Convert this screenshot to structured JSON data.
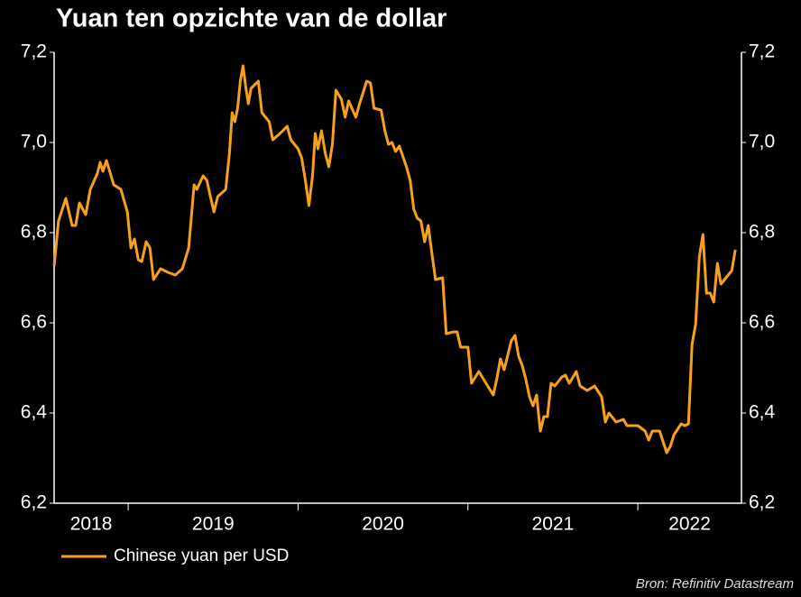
{
  "chart_data": {
    "type": "line",
    "title": "Yuan ten opzichte van de dollar",
    "source": "Bron: Refinitiv Datastream",
    "xlim": [
      2018.564,
      2022.61
    ],
    "xticks": [
      2019,
      2020,
      2021,
      2022
    ],
    "xlabels": [
      2018,
      2019,
      2020,
      2021,
      2022
    ],
    "ylim": [
      6.2,
      7.2
    ],
    "yticks": [
      {
        "value": 6.2,
        "label": "6,2"
      },
      {
        "value": 6.4,
        "label": "6,4"
      },
      {
        "value": 6.6,
        "label": "6,6"
      },
      {
        "value": 6.8,
        "label": "6,8"
      },
      {
        "value": 7.0,
        "label": "7,0"
      },
      {
        "value": 7.2,
        "label": "7,2"
      }
    ],
    "y2lim": [
      6.2,
      7.2
    ],
    "y2ticks": [
      {
        "value": 6.2,
        "label": "6,2"
      },
      {
        "value": 6.4,
        "label": "6,4"
      },
      {
        "value": 6.6,
        "label": "6,6"
      },
      {
        "value": 6.8,
        "label": "6,8"
      },
      {
        "value": 7.0,
        "label": "7,0"
      },
      {
        "value": 7.2,
        "label": "7,2"
      }
    ],
    "legend": "bottom-left",
    "x": [
      2018.564,
      2018.59,
      2018.633,
      2018.67,
      2018.691,
      2018.713,
      2018.75,
      2018.777,
      2018.819,
      2018.835,
      2018.851,
      2018.872,
      2018.915,
      2018.957,
      2018.995,
      2019.016,
      2019.037,
      2019.059,
      2019.08,
      2019.106,
      2019.128,
      2019.149,
      2019.191,
      2019.234,
      2019.277,
      2019.319,
      2019.356,
      2019.372,
      2019.388,
      2019.404,
      2019.441,
      2019.463,
      2019.484,
      2019.505,
      2019.527,
      2019.574,
      2019.596,
      2019.612,
      2019.628,
      2019.644,
      2019.66,
      2019.676,
      2019.691,
      2019.707,
      2019.723,
      2019.766,
      2019.787,
      2019.83,
      2019.851,
      2019.894,
      2019.936,
      2019.957,
      2020.0,
      2020.021,
      2020.043,
      2020.064,
      2020.085,
      2020.101,
      2020.117,
      2020.138,
      2020.16,
      2020.181,
      2020.202,
      2020.223,
      2020.255,
      2020.277,
      2020.298,
      2020.34,
      2020.362,
      2020.404,
      2020.426,
      2020.447,
      2020.489,
      2020.511,
      2020.532,
      2020.553,
      2020.574,
      2020.596,
      2020.638,
      2020.66,
      2020.681,
      2020.702,
      2020.723,
      2020.745,
      2020.766,
      2020.787,
      2020.809,
      2020.851,
      2020.872,
      2020.915,
      2020.936,
      2020.957,
      2021.0,
      2021.021,
      2021.064,
      2021.106,
      2021.149,
      2021.17,
      2021.191,
      2021.213,
      2021.255,
      2021.277,
      2021.298,
      2021.319,
      2021.34,
      2021.362,
      2021.383,
      2021.404,
      2021.426,
      2021.447,
      2021.468,
      2021.489,
      2021.511,
      2021.553,
      2021.574,
      2021.596,
      2021.638,
      2021.66,
      2021.702,
      2021.745,
      2021.787,
      2021.809,
      2021.83,
      2021.872,
      2021.915,
      2021.936,
      2022.0,
      2022.043,
      2022.064,
      2022.085,
      2022.128,
      2022.149,
      2022.17,
      2022.191,
      2022.213,
      2022.255,
      2022.277,
      2022.298,
      2022.319,
      2022.34,
      2022.362,
      2022.383,
      2022.404,
      2022.426,
      2022.447,
      2022.468,
      2022.489,
      2022.532,
      2022.553,
      2022.574
    ],
    "series": [
      {
        "name": "Chinese yuan per USD",
        "color": "#f7a11a",
        "values": [
          6.726,
          6.826,
          6.876,
          6.816,
          6.816,
          6.866,
          6.84,
          6.896,
          6.932,
          6.956,
          6.936,
          6.96,
          6.906,
          6.896,
          6.846,
          6.766,
          6.786,
          6.74,
          6.736,
          6.78,
          6.766,
          6.696,
          6.72,
          6.712,
          6.706,
          6.72,
          6.766,
          6.836,
          6.906,
          6.896,
          6.926,
          6.916,
          6.88,
          6.846,
          6.88,
          6.896,
          6.976,
          7.066,
          7.046,
          7.076,
          7.136,
          7.17,
          7.126,
          7.086,
          7.12,
          7.136,
          7.066,
          7.046,
          7.006,
          7.02,
          7.036,
          7.006,
          6.986,
          6.966,
          6.916,
          6.86,
          6.926,
          7.02,
          6.986,
          7.026,
          6.976,
          6.946,
          6.996,
          7.116,
          7.096,
          7.056,
          7.092,
          7.056,
          7.086,
          7.136,
          7.132,
          7.076,
          7.072,
          7.026,
          6.996,
          7.0,
          6.98,
          6.992,
          6.946,
          6.916,
          6.852,
          6.832,
          6.826,
          6.78,
          6.816,
          6.756,
          6.696,
          6.7,
          6.576,
          6.58,
          6.58,
          6.546,
          6.546,
          6.466,
          6.492,
          6.466,
          6.44,
          6.476,
          6.52,
          6.496,
          6.56,
          6.572,
          6.526,
          6.506,
          6.476,
          6.436,
          6.416,
          6.44,
          6.36,
          6.392,
          6.392,
          6.466,
          6.46,
          6.48,
          6.484,
          6.466,
          6.492,
          6.46,
          6.45,
          6.46,
          6.436,
          6.38,
          6.4,
          6.38,
          6.386,
          6.372,
          6.372,
          6.36,
          6.34,
          6.36,
          6.36,
          6.336,
          6.312,
          6.326,
          6.352,
          6.376,
          6.372,
          6.376,
          6.552,
          6.596,
          6.746,
          6.796,
          6.666,
          6.666,
          6.646,
          6.732,
          6.686,
          6.706,
          6.716,
          6.762
        ]
      }
    ]
  }
}
